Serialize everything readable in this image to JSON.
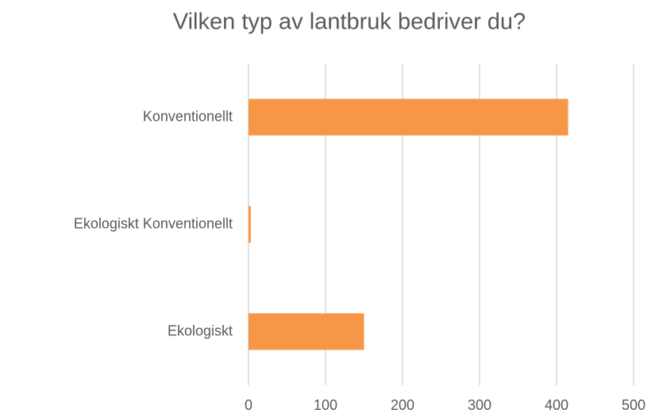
{
  "chart_data": {
    "type": "bar",
    "orientation": "horizontal",
    "title": "Vilken typ av lantbruk bedriver du?",
    "categories": [
      "Konventionellt",
      "Ekologiskt Konventionellt",
      "Ekologiskt"
    ],
    "values": [
      415,
      3,
      150
    ],
    "color": "#f79646",
    "xlim": [
      0,
      500
    ],
    "xticks": [
      0,
      100,
      200,
      300,
      400,
      500
    ],
    "grid": true
  }
}
